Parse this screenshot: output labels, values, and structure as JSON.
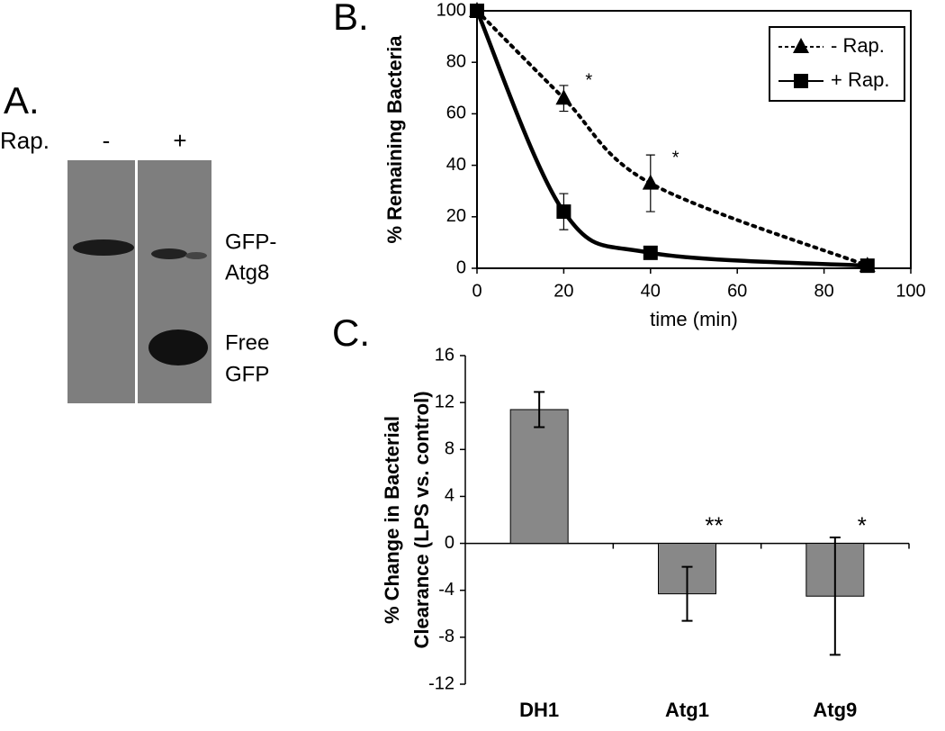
{
  "panel_a": {
    "label": "A.",
    "row_label": "Rap.",
    "lanes": [
      "-",
      "+"
    ],
    "bands": [
      "GFP-",
      "Atg8",
      "Free",
      "GFP"
    ]
  },
  "chart_data": [
    {
      "type": "line",
      "label": "B.",
      "xlabel": "time (min)",
      "ylabel": "% Remaining Bacteria",
      "x": [
        0,
        20,
        40,
        90
      ],
      "xlim": [
        0,
        100
      ],
      "xticks": [
        0,
        20,
        40,
        60,
        80,
        100
      ],
      "ylim": [
        0,
        100
      ],
      "yticks": [
        0,
        20,
        40,
        60,
        80,
        100
      ],
      "legend": "upper right",
      "series": [
        {
          "name": "- Rap.",
          "color": "#000000",
          "dash": "dotted",
          "marker": "triangle",
          "values": [
            100,
            66,
            33,
            1
          ],
          "errors": [
            null,
            5,
            11,
            null
          ],
          "significance": [
            null,
            "*",
            "*",
            null
          ]
        },
        {
          "name": "+ Rap.",
          "color": "#000000",
          "dash": "solid",
          "marker": "square",
          "values": [
            100,
            22,
            6,
            1
          ],
          "errors": [
            null,
            7,
            null,
            null
          ],
          "significance": [
            null,
            null,
            null,
            null
          ]
        }
      ]
    },
    {
      "type": "bar",
      "label": "C.",
      "ylabel": [
        "% Change in Bacterial",
        "Clearance (LPS vs. control)"
      ],
      "categories": [
        "DH1",
        "Atg1",
        "Atg9"
      ],
      "values": [
        11.4,
        -4.3,
        -4.5
      ],
      "errors": [
        1.5,
        2.3,
        5.0
      ],
      "significance": [
        null,
        "**",
        "*"
      ],
      "color": "#888888",
      "ylim": [
        -12,
        16
      ],
      "yticks": [
        -12,
        -8,
        -4,
        0,
        4,
        8,
        12,
        16
      ]
    }
  ]
}
